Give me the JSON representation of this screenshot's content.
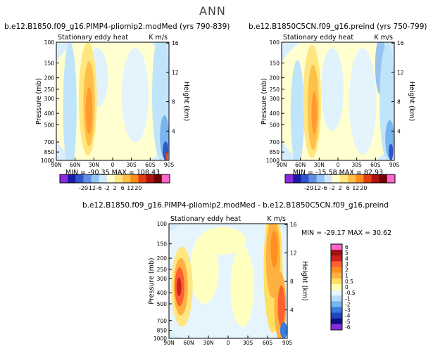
{
  "figure": {
    "title": "ANN",
    "colorbar_levels": [
      "-20",
      "-12",
      "-6",
      "-2",
      "2",
      "6",
      "12",
      "20"
    ],
    "colorbar_colors": [
      "#8a2be2",
      "#1a1aa8",
      "#2f55c9",
      "#5f8ee6",
      "#96c3f2",
      "#cfe9fb",
      "#ffffc8",
      "#ffe680",
      "#ffc04a",
      "#ff8c1a",
      "#e04010",
      "#b01010",
      "#700000",
      "#ff66cc"
    ],
    "diff_levels": [
      "6",
      "5",
      "4",
      "3",
      "2",
      "1",
      "0.5",
      "0",
      "-0.5",
      "-1",
      "-2",
      "-3",
      "-4",
      "-5",
      "-6"
    ],
    "diff_colors": [
      "#ff66cc",
      "#a01010",
      "#d02020",
      "#ff6030",
      "#ff9020",
      "#ffb040",
      "#ffe060",
      "#ffffb0",
      "#e8f6ff",
      "#b8dcf8",
      "#78b4ee",
      "#3a7ce0",
      "#1f45c0",
      "#101080",
      "#8a2be2"
    ]
  },
  "chart_data": [
    {
      "type": "heatmap",
      "title": "b.e12.B1850.f09_g16.PIMP4-pliomip2.modMed  (yrs 790-839)",
      "subtitle": "Stationary eddy heat",
      "units": "K m/s",
      "xlabel": "",
      "ylabel": "Pressure (mb)",
      "y2label": "Height (km)",
      "x_ticks": [
        "90N",
        "60N",
        "30N",
        "0",
        "30S",
        "60S",
        "90S"
      ],
      "y_ticks": [
        "100",
        "150",
        "200",
        "250",
        "300",
        "400",
        "500",
        "700",
        "850",
        "1000"
      ],
      "y2_ticks": [
        "16",
        "12",
        "8",
        "4"
      ],
      "min": -90.35,
      "max": 108.43,
      "stats_label": "MIN = -90.35   MAX = 108.43"
    },
    {
      "type": "heatmap",
      "title": "b.e12.B1850C5CN.f09_g16.preind  (yrs 750-799)",
      "subtitle": "Stationary eddy heat",
      "units": "K m/s",
      "xlabel": "",
      "ylabel": "Pressure (mb)",
      "y2label": "Height (km)",
      "x_ticks": [
        "90N",
        "60N",
        "30N",
        "0",
        "30S",
        "60S",
        "90S"
      ],
      "y_ticks": [
        "100",
        "150",
        "200",
        "250",
        "300",
        "400",
        "500",
        "700",
        "850",
        "1000"
      ],
      "y2_ticks": [
        "16",
        "12",
        "8",
        "4"
      ],
      "min": -15.58,
      "max": 82.93,
      "stats_label": "MIN = -15.58   MAX =  82.93"
    },
    {
      "type": "heatmap",
      "title": "b.e12.B1850.f09_g16.PIMP4-pliomip2.modMed - b.e12.B1850C5CN.f09_g16.preind",
      "subtitle": "Stationary eddy heat",
      "units": "K m/s",
      "xlabel": "",
      "ylabel": "Pressure (mb)",
      "y2label": "Height (km)",
      "x_ticks": [
        "90N",
        "60N",
        "30N",
        "0",
        "30S",
        "60S",
        "90S"
      ],
      "y_ticks": [
        "100",
        "150",
        "200",
        "250",
        "300",
        "400",
        "500",
        "700",
        "850",
        "1000"
      ],
      "y2_ticks": [
        "16",
        "12",
        "8",
        "4"
      ],
      "min": -29.17,
      "max": 30.62,
      "stats_label": "MIN = -29.17   MAX =  30.62"
    }
  ]
}
